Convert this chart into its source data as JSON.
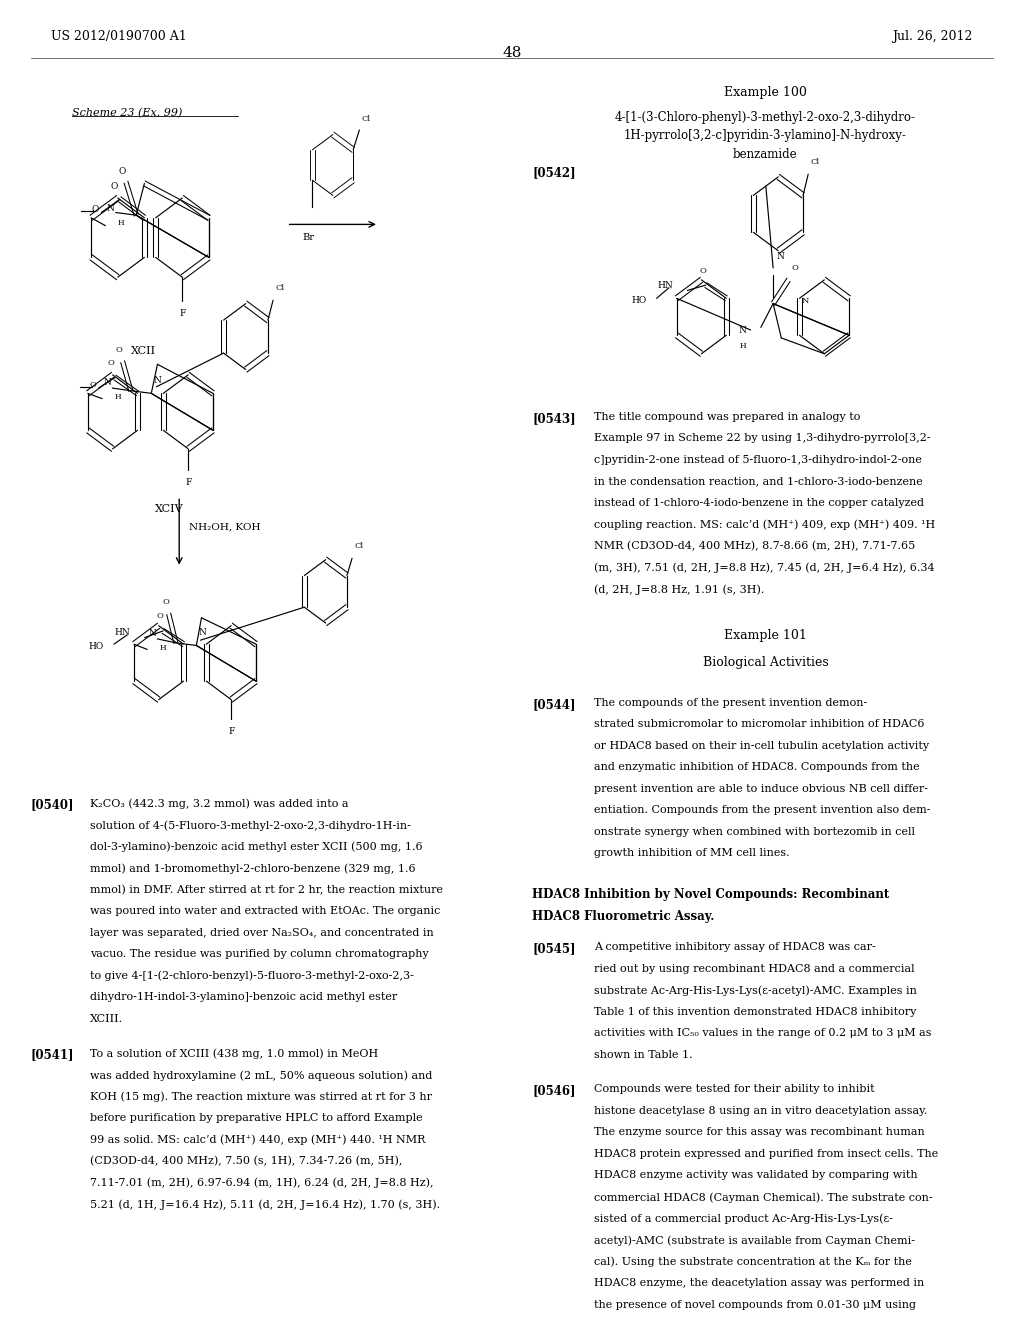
{
  "page_header_left": "US 2012/0190700 A1",
  "page_header_right": "Jul. 26, 2012",
  "page_number": "48",
  "scheme_label": "Scheme 23 (Ex. 99)",
  "compound_xcii": "XCII",
  "compound_xciv": "XCIV",
  "reaction_reagent_bottom": "NH₂OH, KOH",
  "example100_title": "Example 100",
  "tag_0542": "[0542]",
  "tag_0543": "[0543]",
  "tag_0540": "[0540]",
  "tag_0541": "[0541]",
  "example101_title": "Example 101",
  "example101_subtitle": "Biological Activities",
  "tag_0544": "[0544]",
  "hdac8_title": "HDAC8 Inhibition by Novel Compounds: Recombinant\nHDAC8 Fluorometric Assay.",
  "tag_0545": "[0545]",
  "tag_0546": "[0546]",
  "bg_color": "#ffffff"
}
